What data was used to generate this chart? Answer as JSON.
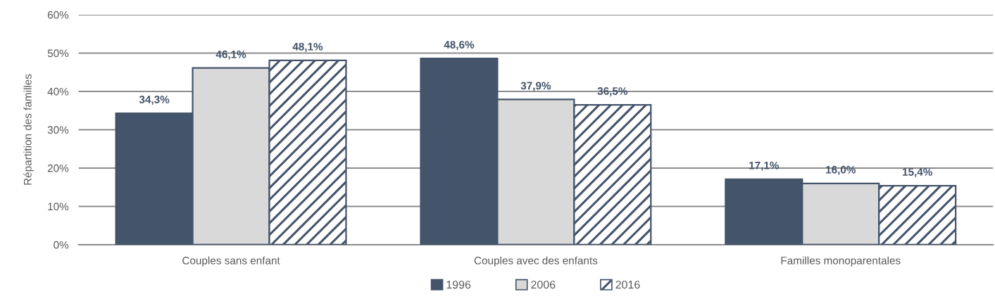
{
  "chart_data": {
    "type": "bar",
    "ylabel": "Répartition des familles",
    "categories": [
      "Couples sans enfant",
      "Couples avec des enfants",
      "Familles monoparentales"
    ],
    "series": [
      {
        "name": "1996",
        "color": "#44546a",
        "values": [
          34.3,
          48.6,
          17.1
        ],
        "value_labels": [
          "34,3%",
          "48,6%",
          "17,1%"
        ]
      },
      {
        "name": "2006",
        "color": "#d9d9d9",
        "values": [
          46.1,
          37.9,
          16.0
        ],
        "value_labels": [
          "46,1%",
          "37,9%",
          "16,0%"
        ]
      },
      {
        "name": "2016",
        "color": "#44546a",
        "values": [
          48.1,
          36.5,
          15.4
        ],
        "value_labels": [
          "48,1%",
          "36,5%",
          "15,4%"
        ]
      }
    ],
    "ylim": [
      0,
      60
    ],
    "yticks": [
      {
        "value": 0,
        "label": "0%"
      },
      {
        "value": 10,
        "label": "10%"
      },
      {
        "value": 20,
        "label": "20%"
      },
      {
        "value": 30,
        "label": "30%"
      },
      {
        "value": 40,
        "label": "40%"
      },
      {
        "value": 50,
        "label": "50%"
      },
      {
        "value": 60,
        "label": "60%"
      }
    ],
    "grid": "y",
    "legend": "bottom"
  }
}
